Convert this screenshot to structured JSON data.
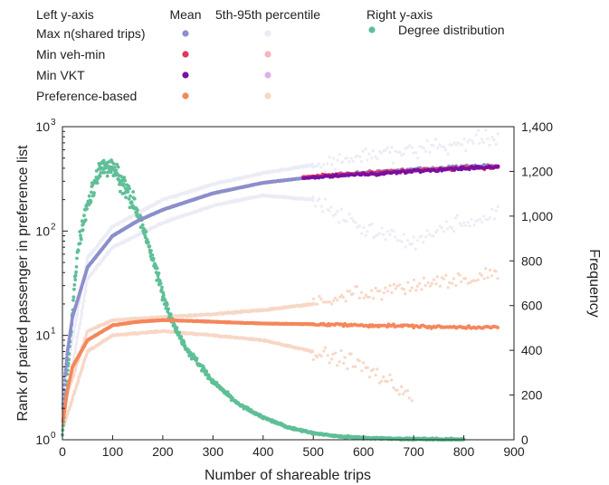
{
  "chart_data": {
    "type": "scatter",
    "x_axis": {
      "label": "Number of shareable trips",
      "range": [
        0,
        900
      ],
      "ticks": [
        0,
        100,
        200,
        300,
        400,
        500,
        600,
        700,
        800,
        900
      ]
    },
    "y_left": {
      "label": "Rank of paired passenger in preference list",
      "scale": "log",
      "range": [
        1,
        1000
      ],
      "ticks": [
        {
          "base": "10",
          "exp": "0",
          "value": 1
        },
        {
          "base": "10",
          "exp": "1",
          "value": 10
        },
        {
          "base": "10",
          "exp": "2",
          "value": 100
        },
        {
          "base": "10",
          "exp": "3",
          "value": 1000
        }
      ]
    },
    "y_right": {
      "label": "Frequency",
      "range": [
        0,
        1400
      ],
      "ticks": [
        "0",
        "200",
        "400",
        "600",
        "800",
        "1,000",
        "1,200",
        "1,400"
      ]
    },
    "legend": {
      "header_left": "Left y-axis",
      "header_mean": "Mean",
      "header_pct": "5th-95th percentile",
      "header_right": "Right y-axis",
      "position": "top",
      "rows": [
        {
          "label": "Max n(shared trips)",
          "mean_color": "#8c8fcb",
          "pct_color": "#ececf6"
        },
        {
          "label": "Min veh-min",
          "mean_color": "#e6335a",
          "pct_color": "#f6b5bf"
        },
        {
          "label": "Min VKT",
          "mean_color": "#7a0fa3",
          "pct_color": "#dcb0e8"
        },
        {
          "label": "Preference-based",
          "mean_color": "#f5875c",
          "pct_color": "#f7d7c6"
        }
      ],
      "right_rows": [
        {
          "label": "Degree distribution",
          "color": "#5fbf97"
        }
      ]
    },
    "series": [
      {
        "name": "Max n(shared trips)",
        "axis": "left",
        "mean": {
          "x": [
            1,
            5,
            10,
            20,
            50,
            100,
            150,
            200,
            300,
            400,
            500,
            600,
            700,
            750,
            800,
            870
          ],
          "y": [
            2,
            4,
            7,
            15,
            45,
            90,
            125,
            160,
            230,
            290,
            330,
            360,
            390,
            400,
            415,
            420
          ]
        },
        "p95": {
          "x": [
            1,
            50,
            100,
            200,
            300,
            400,
            500,
            600,
            700,
            800,
            870
          ],
          "y": [
            3,
            55,
            110,
            200,
            280,
            360,
            430,
            520,
            600,
            700,
            780
          ]
        },
        "p5": {
          "x": [
            1,
            50,
            100,
            200,
            300,
            400,
            500,
            550,
            600,
            700,
            800,
            870
          ],
          "y": [
            1.5,
            35,
            70,
            120,
            175,
            220,
            200,
            150,
            100,
            80,
            120,
            150
          ]
        }
      },
      {
        "name": "Min veh-min",
        "axis": "left",
        "mean": {
          "x": [
            480,
            550,
            600,
            650,
            700,
            750,
            800,
            870
          ],
          "y": [
            330,
            345,
            355,
            370,
            380,
            390,
            400,
            410
          ]
        }
      },
      {
        "name": "Min VKT",
        "axis": "left",
        "mean": {
          "x": [
            480,
            550,
            600,
            650,
            700,
            750,
            800,
            870
          ],
          "y": [
            320,
            340,
            350,
            360,
            375,
            385,
            400,
            410
          ]
        }
      },
      {
        "name": "Preference-based",
        "axis": "left",
        "mean": {
          "x": [
            1,
            5,
            10,
            20,
            50,
            100,
            150,
            200,
            250,
            300,
            400,
            500,
            600,
            700,
            750,
            870
          ],
          "y": [
            1.5,
            2,
            3,
            5,
            9,
            12.5,
            13.5,
            14,
            13.8,
            13.5,
            13,
            12.8,
            12.5,
            12.3,
            12,
            12
          ]
        },
        "p95": {
          "x": [
            1,
            50,
            100,
            200,
            300,
            400,
            500,
            600,
            700,
            800,
            870
          ],
          "y": [
            2,
            11,
            14,
            15,
            16,
            17.5,
            20,
            25,
            30,
            35,
            40
          ]
        },
        "p5": {
          "x": [
            1,
            50,
            100,
            200,
            300,
            400,
            500,
            600,
            650,
            700
          ],
          "y": [
            1.3,
            7,
            10,
            11,
            10,
            9,
            7,
            5,
            3.5,
            2.5
          ]
        }
      },
      {
        "name": "Degree distribution",
        "axis": "right",
        "x": [
          0,
          5,
          10,
          20,
          30,
          50,
          70,
          80,
          100,
          120,
          150,
          175,
          200,
          225,
          250,
          300,
          350,
          400,
          450,
          500,
          550,
          600,
          700,
          800
        ],
        "y": [
          20,
          150,
          300,
          560,
          850,
          1050,
          1180,
          1230,
          1210,
          1150,
          1020,
          850,
          650,
          500,
          400,
          260,
          160,
          100,
          55,
          30,
          15,
          8,
          3,
          1
        ]
      }
    ]
  }
}
